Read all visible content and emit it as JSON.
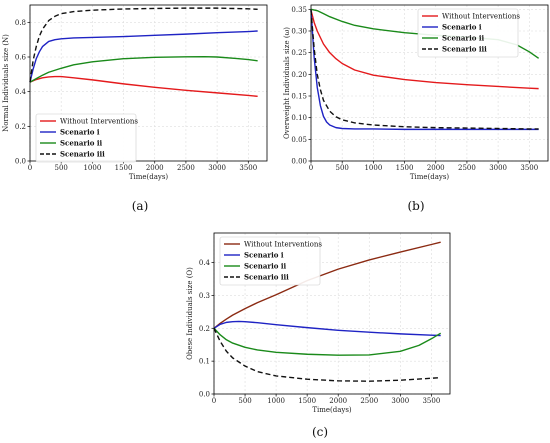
{
  "charts": [
    {
      "caption": "(a)",
      "chart_data": {
        "type": "line",
        "xlabel": "Time(days)",
        "ylabel": "Normal Individuals size (N)",
        "xlim": [
          0,
          3800
        ],
        "ylim": [
          0,
          0.9
        ],
        "xticks": [
          0,
          500,
          1000,
          1500,
          2000,
          2500,
          3000,
          3500
        ],
        "yticks": [
          0.0,
          0.2,
          0.4,
          0.6,
          0.8
        ],
        "grid": true,
        "legend_position": "bottom-left",
        "series": [
          {
            "name": "Without Interventions",
            "color": "#e41a1c",
            "dash": "solid",
            "x": [
              0,
              100,
              200,
              300,
              400,
              500,
              700,
              1000,
              1500,
              2000,
              2500,
              3000,
              3500,
              3650
            ],
            "y": [
              0.455,
              0.47,
              0.48,
              0.485,
              0.487,
              0.487,
              0.48,
              0.468,
              0.445,
              0.425,
              0.408,
              0.393,
              0.378,
              0.373
            ]
          },
          {
            "name": "Scenario i",
            "color": "#1f23c4",
            "dash": "solid",
            "x": [
              0,
              50,
              100,
              150,
              200,
              300,
              400,
              500,
              700,
              1000,
              1500,
              2000,
              2500,
              3000,
              3500,
              3650
            ],
            "y": [
              0.455,
              0.53,
              0.59,
              0.63,
              0.66,
              0.69,
              0.7,
              0.705,
              0.71,
              0.713,
              0.718,
              0.725,
              0.732,
              0.74,
              0.747,
              0.75
            ]
          },
          {
            "name": "Scenario ii",
            "color": "#1a8a1a",
            "dash": "solid",
            "x": [
              0,
              100,
              200,
              300,
              500,
              700,
              1000,
              1500,
              2000,
              2500,
              2800,
              3000,
              3300,
              3500,
              3650
            ],
            "y": [
              0.455,
              0.475,
              0.495,
              0.512,
              0.535,
              0.555,
              0.572,
              0.59,
              0.598,
              0.601,
              0.602,
              0.6,
              0.592,
              0.585,
              0.578
            ]
          },
          {
            "name": "Scenario iii",
            "color": "#111111",
            "dash": "dashed",
            "x": [
              0,
              50,
              100,
              150,
              200,
              300,
              400,
              500,
              700,
              1000,
              1500,
              2000,
              2500,
              3000,
              3500,
              3650
            ],
            "y": [
              0.455,
              0.58,
              0.66,
              0.72,
              0.76,
              0.81,
              0.835,
              0.85,
              0.862,
              0.87,
              0.877,
              0.88,
              0.882,
              0.882,
              0.878,
              0.875
            ]
          }
        ]
      }
    },
    {
      "caption": "(b)",
      "chart_data": {
        "type": "line",
        "xlabel": "Time(days)",
        "ylabel": "Overweight Individuals size (ω)",
        "xlim": [
          0,
          3800
        ],
        "ylim": [
          0,
          0.36
        ],
        "xticks": [
          0,
          500,
          1000,
          1500,
          2000,
          2500,
          3000,
          3500
        ],
        "yticks": [
          0.0,
          0.05,
          0.1,
          0.15,
          0.2,
          0.25,
          0.3,
          0.35
        ],
        "grid": true,
        "legend_position": "top-right",
        "series": [
          {
            "name": "Without Interventions",
            "color": "#e41a1c",
            "dash": "solid",
            "x": [
              0,
              50,
              100,
              200,
              300,
              400,
              500,
              700,
              1000,
              1500,
              2000,
              2500,
              3000,
              3500,
              3650
            ],
            "y": [
              0.348,
              0.32,
              0.3,
              0.27,
              0.25,
              0.236,
              0.225,
              0.21,
              0.198,
              0.188,
              0.181,
              0.176,
              0.172,
              0.168,
              0.167
            ]
          },
          {
            "name": "Scenario i",
            "color": "#1f23c4",
            "dash": "solid",
            "x": [
              0,
              50,
              100,
              150,
              200,
              250,
              300,
              400,
              500,
              700,
              1000,
              1500,
              2000,
              3000,
              3650
            ],
            "y": [
              0.348,
              0.24,
              0.17,
              0.128,
              0.103,
              0.09,
              0.083,
              0.077,
              0.075,
              0.074,
              0.074,
              0.073,
              0.073,
              0.073,
              0.073
            ]
          },
          {
            "name": "Scenario ii",
            "color": "#1a8a1a",
            "dash": "solid",
            "x": [
              0,
              100,
              200,
              300,
              500,
              700,
              1000,
              1500,
              2000,
              2500,
              3000,
              3300,
              3500,
              3650
            ],
            "y": [
              0.35,
              0.347,
              0.34,
              0.333,
              0.322,
              0.313,
              0.305,
              0.296,
              0.29,
              0.286,
              0.28,
              0.268,
              0.252,
              0.237
            ]
          },
          {
            "name": "Scenario iii",
            "color": "#111111",
            "dash": "dashed",
            "x": [
              0,
              50,
              100,
              150,
              200,
              300,
              400,
              500,
              700,
              1000,
              1500,
              2000,
              2500,
              3000,
              3500,
              3650
            ],
            "y": [
              0.348,
              0.26,
              0.2,
              0.165,
              0.14,
              0.115,
              0.102,
              0.095,
              0.088,
              0.083,
              0.079,
              0.077,
              0.076,
              0.075,
              0.074,
              0.074
            ]
          }
        ]
      }
    },
    {
      "caption": "(c)",
      "chart_data": {
        "type": "line",
        "xlabel": "Time(days)",
        "ylabel": "Obese Individuals size (O)",
        "xlim": [
          0,
          3800
        ],
        "ylim": [
          0,
          0.49
        ],
        "xticks": [
          0,
          500,
          1000,
          1500,
          2000,
          2500,
          3000,
          3500
        ],
        "yticks": [
          0.0,
          0.1,
          0.2,
          0.3,
          0.4
        ],
        "grid": true,
        "legend_position": "top-left",
        "series": [
          {
            "name": "Without Interventions",
            "color": "#8b2a12",
            "dash": "solid",
            "x": [
              0,
              100,
              200,
              300,
              500,
              700,
              1000,
              1500,
              2000,
              2500,
              3000,
              3500,
              3650
            ],
            "y": [
              0.2,
              0.215,
              0.228,
              0.24,
              0.26,
              0.278,
              0.302,
              0.345,
              0.38,
              0.408,
              0.432,
              0.455,
              0.462
            ]
          },
          {
            "name": "Scenario i",
            "color": "#1f23c4",
            "dash": "solid",
            "x": [
              0,
              100,
              200,
              300,
              400,
              500,
              700,
              1000,
              1500,
              2000,
              2500,
              3000,
              3500,
              3650
            ],
            "y": [
              0.2,
              0.212,
              0.218,
              0.22,
              0.221,
              0.22,
              0.217,
              0.211,
              0.202,
              0.194,
              0.188,
              0.183,
              0.179,
              0.178
            ]
          },
          {
            "name": "Scenario ii",
            "color": "#1a8a1a",
            "dash": "solid",
            "x": [
              0,
              100,
              200,
              300,
              500,
              700,
              1000,
              1500,
              2000,
              2500,
              3000,
              3300,
              3500,
              3650
            ],
            "y": [
              0.2,
              0.18,
              0.165,
              0.155,
              0.142,
              0.134,
              0.127,
              0.121,
              0.118,
              0.119,
              0.13,
              0.148,
              0.168,
              0.185
            ]
          },
          {
            "name": "Scenario iii",
            "color": "#111111",
            "dash": "dashed",
            "x": [
              0,
              100,
              200,
              300,
              500,
              700,
              1000,
              1500,
              2000,
              2500,
              3000,
              3500,
              3650
            ],
            "y": [
              0.2,
              0.16,
              0.13,
              0.11,
              0.085,
              0.068,
              0.055,
              0.045,
              0.04,
              0.039,
              0.042,
              0.048,
              0.05
            ]
          }
        ]
      }
    }
  ]
}
